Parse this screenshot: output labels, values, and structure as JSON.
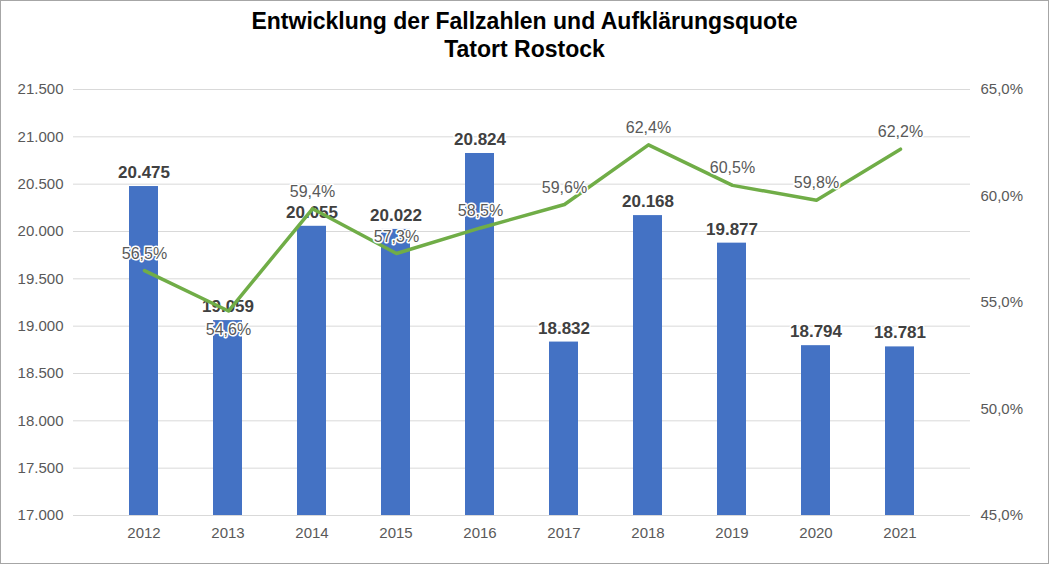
{
  "chart_data": {
    "type": "bar",
    "title": "Entwicklung der Fallzahlen und Aufklärungsquote",
    "subtitle": "Tatort Rostock",
    "categories": [
      "2012",
      "2013",
      "2014",
      "2015",
      "2016",
      "2017",
      "2018",
      "2019",
      "2020",
      "2021"
    ],
    "series": [
      {
        "type": "bar",
        "color": "#4472c4",
        "values": [
          20475,
          19059,
          20055,
          20022,
          20824,
          18832,
          20168,
          19877,
          18794,
          18781
        ],
        "value_labels": [
          "20.475",
          "19.059",
          "20.055",
          "20.022",
          "20.824",
          "18.832",
          "20.168",
          "19.877",
          "18.794",
          "18.781"
        ]
      },
      {
        "type": "line",
        "axis": "y2",
        "color": "#70ad47",
        "values": [
          56.5,
          54.6,
          59.4,
          57.3,
          58.5,
          59.6,
          62.4,
          60.5,
          59.8,
          62.2
        ],
        "value_labels": [
          "56,5%",
          "54,6%",
          "59,4%",
          "57,3%",
          "58,5%",
          "59,6%",
          "62,4%",
          "60,5%",
          "59,8%",
          "62,2%"
        ]
      }
    ],
    "ylim": [
      17000,
      21500
    ],
    "yticks": [
      {
        "value": 17000,
        "label": "17.000"
      },
      {
        "value": 17500,
        "label": "17.500"
      },
      {
        "value": 18000,
        "label": "18.000"
      },
      {
        "value": 18500,
        "label": "18.500"
      },
      {
        "value": 19000,
        "label": "19.000"
      },
      {
        "value": 19500,
        "label": "19.500"
      },
      {
        "value": 20000,
        "label": "20.000"
      },
      {
        "value": 20500,
        "label": "20.500"
      },
      {
        "value": 21000,
        "label": "21.000"
      },
      {
        "value": 21500,
        "label": "21.500"
      }
    ],
    "y2lim": [
      45,
      65
    ],
    "y2ticks": [
      {
        "value": 45,
        "label": "45,0%"
      },
      {
        "value": 50,
        "label": "50,0%"
      },
      {
        "value": 55,
        "label": "55,0%"
      },
      {
        "value": 60,
        "label": "60,0%"
      },
      {
        "value": 65,
        "label": "65,0%"
      }
    ],
    "grid": true,
    "data_labels": true
  }
}
